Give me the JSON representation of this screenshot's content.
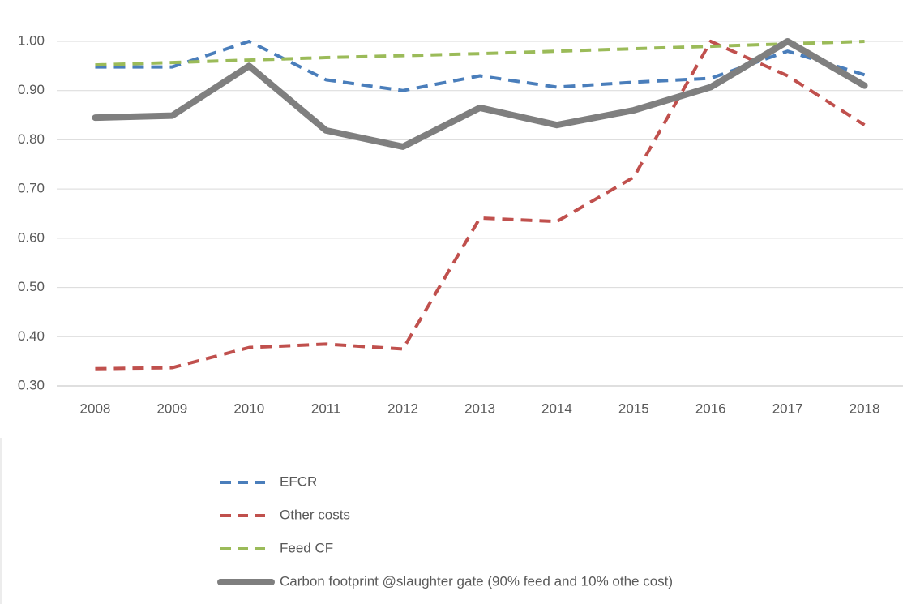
{
  "chart_data": {
    "type": "line",
    "categories": [
      "2008",
      "2009",
      "2010",
      "2011",
      "2012",
      "2013",
      "2014",
      "2015",
      "2016",
      "2017",
      "2018"
    ],
    "series": [
      {
        "name": "EFCR",
        "color": "#4a7ebb",
        "line_style": "dashed",
        "values": [
          0.948,
          0.948,
          1.0,
          0.922,
          0.9,
          0.93,
          0.907,
          0.917,
          0.925,
          0.98,
          0.932
        ]
      },
      {
        "name": "Other costs",
        "color": "#c0504d",
        "line_style": "dashed",
        "values": [
          0.335,
          0.337,
          0.378,
          0.385,
          0.375,
          0.641,
          0.634,
          0.724,
          1.0,
          0.93,
          0.83
        ]
      },
      {
        "name": "Feed CF",
        "color": "#9bbb59",
        "line_style": "dashed",
        "values": [
          0.952,
          0.957,
          0.962,
          0.967,
          0.971,
          0.975,
          0.98,
          0.985,
          0.99,
          0.995,
          1.0
        ]
      },
      {
        "name": "Carbon footprint @slaughter gate (90% feed and 10% othe cost)",
        "color": "#7f7f7f",
        "line_style": "solid",
        "values": [
          0.845,
          0.849,
          0.95,
          0.819,
          0.786,
          0.865,
          0.83,
          0.86,
          0.907,
          1.0,
          0.91
        ]
      }
    ],
    "ylim": [
      0.3,
      1.0
    ],
    "yticks": [
      {
        "value": 0.3,
        "label": "0.30"
      },
      {
        "value": 0.4,
        "label": "0.40"
      },
      {
        "value": 0.5,
        "label": "0.50"
      },
      {
        "value": 0.6,
        "label": "0.60"
      },
      {
        "value": 0.7,
        "label": "0.70"
      },
      {
        "value": 0.8,
        "label": "0.80"
      },
      {
        "value": 0.9,
        "label": "0.90"
      },
      {
        "value": 1.0,
        "label": "1.00"
      }
    ],
    "grid": true,
    "legend": "bottom"
  }
}
